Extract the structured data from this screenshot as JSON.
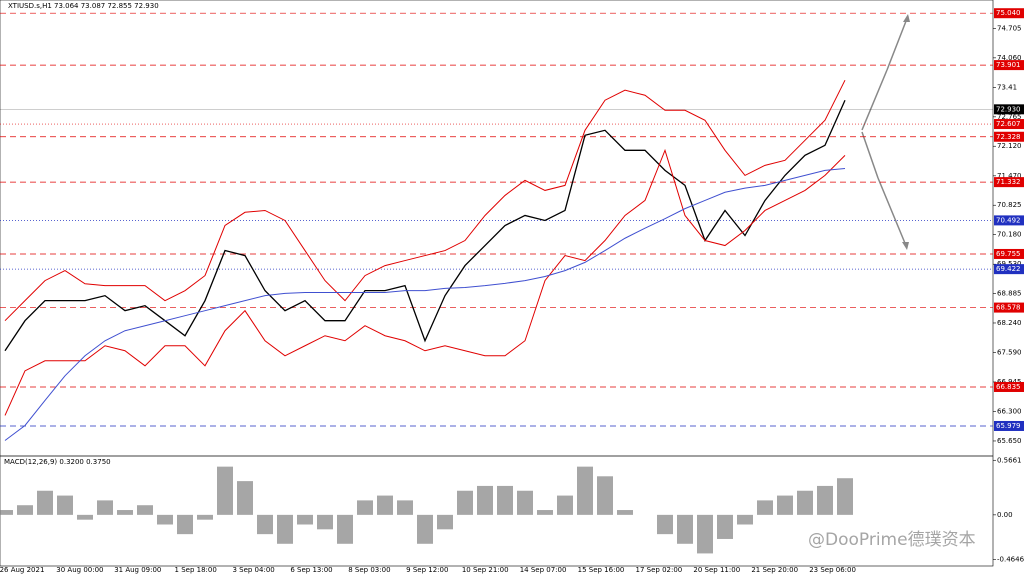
{
  "chart_data": [
    {
      "type": "line",
      "title": "XTIUSD.s,H1  73.064 73.087 72.855 72.930",
      "x_labels": [
        "26 Aug 2021",
        "30 Aug 00:00",
        "31 Aug 09:00",
        "1 Sep 18:00",
        "3 Sep 04:00",
        "6 Sep 13:00",
        "8 Sep 03:00",
        "9 Sep 12:00",
        "10 Sep 21:00",
        "14 Sep 07:00",
        "15 Sep 16:00",
        "17 Sep 02:00",
        "20 Sep 11:00",
        "21 Sep 20:00",
        "23 Sep 06:00"
      ],
      "ylim": [
        65.32,
        75.33
      ],
      "yticks": [
        74.705,
        {
          "value": 74.06,
          "label": "74.060"
        },
        73.41,
        72.765,
        {
          "value": 72.12,
          "label": "72.120"
        },
        {
          "value": 71.47,
          "label": "71.470"
        },
        70.825,
        {
          "value": 70.18,
          "label": "70.180"
        },
        {
          "value": 69.53,
          "label": "69.530"
        },
        68.885,
        {
          "value": 68.24,
          "label": "68.240"
        },
        {
          "value": 67.59,
          "label": "67.590"
        },
        66.945,
        {
          "value": 66.3,
          "label": "66.300"
        },
        {
          "value": 65.65,
          "label": "65.650"
        }
      ],
      "levels": [
        {
          "value": 75.04,
          "label": "75.040",
          "color": "#e00000",
          "dash": "dashed"
        },
        {
          "value": 73.901,
          "label": "73.901",
          "color": "#e00000",
          "dash": "dashed"
        },
        {
          "value": 72.93,
          "label": "72.930",
          "color": "#000000",
          "dash": "solid"
        },
        {
          "value": 72.607,
          "label": "72.607",
          "color": "#e00000",
          "dash": "dotted"
        },
        {
          "value": 72.328,
          "label": "72.328",
          "color": "#e00000",
          "dash": "dashed"
        },
        {
          "value": 71.332,
          "label": "71.332",
          "color": "#e00000",
          "dash": "dashed"
        },
        {
          "value": 70.492,
          "label": "70.492",
          "color": "#2030c0",
          "dash": "dotted"
        },
        {
          "value": 69.755,
          "label": "69.755",
          "color": "#e00000",
          "dash": "dashed"
        },
        {
          "value": 69.422,
          "label": "69.422",
          "color": "#2030c0",
          "dash": "dotted"
        },
        {
          "value": 68.578,
          "label": "68.578",
          "color": "#e00000",
          "dash": "dashed"
        },
        {
          "value": 66.835,
          "label": "66.835",
          "color": "#e00000",
          "dash": "dashed"
        },
        {
          "value": 65.979,
          "label": "65.979",
          "color": "#2030c0",
          "dash": "dashed"
        }
      ],
      "series": [
        {
          "color": "#000000",
          "values": [
            67.63,
            68.29,
            68.73,
            68.73,
            68.73,
            68.84,
            68.51,
            68.62,
            68.29,
            67.96,
            68.73,
            69.83,
            69.72,
            68.95,
            68.51,
            68.73,
            68.29,
            68.29,
            68.95,
            68.95,
            69.06,
            67.85,
            68.84,
            69.5,
            69.94,
            70.38,
            70.6,
            70.49,
            70.71,
            72.36,
            72.47,
            72.03,
            72.03,
            71.59,
            71.26,
            70.05,
            70.71,
            70.16,
            70.93,
            71.48,
            71.92,
            72.14,
            73.13
          ]
        },
        {
          "color": "#e00000",
          "values": [
            68.29,
            68.73,
            69.17,
            69.39,
            69.1,
            69.06,
            69.06,
            69.06,
            68.73,
            68.95,
            69.28,
            70.38,
            70.67,
            70.71,
            70.49,
            69.83,
            69.17,
            68.73,
            69.28,
            69.5,
            69.61,
            69.72,
            69.83,
            70.05,
            70.6,
            71.04,
            71.37,
            71.15,
            71.26,
            72.47,
            73.13,
            73.35,
            73.24,
            72.91,
            72.91,
            72.69,
            72.03,
            71.48,
            71.7,
            71.81,
            72.25,
            72.69,
            73.57
          ]
        },
        {
          "color": "#e00000",
          "values": [
            66.21,
            67.19,
            67.41,
            67.41,
            67.41,
            67.74,
            67.63,
            67.3,
            67.74,
            67.74,
            67.3,
            68.07,
            68.51,
            67.85,
            67.52,
            67.74,
            67.96,
            67.85,
            68.18,
            67.96,
            67.85,
            67.63,
            67.74,
            67.63,
            67.52,
            67.52,
            67.85,
            69.17,
            69.72,
            69.61,
            70.05,
            70.6,
            70.93,
            72.03,
            70.6,
            70.05,
            69.94,
            70.27,
            70.71,
            70.93,
            71.15,
            71.48,
            71.92
          ]
        },
        {
          "color": "#4050d0",
          "values": [
            65.66,
            65.99,
            66.54,
            67.08,
            67.52,
            67.85,
            68.07,
            68.18,
            68.29,
            68.4,
            68.51,
            68.62,
            68.73,
            68.84,
            68.89,
            68.91,
            68.91,
            68.91,
            68.91,
            68.91,
            68.95,
            68.95,
            69.0,
            69.02,
            69.06,
            69.11,
            69.17,
            69.26,
            69.39,
            69.57,
            69.83,
            70.1,
            70.32,
            70.53,
            70.75,
            70.93,
            71.11,
            71.2,
            71.26,
            71.37,
            71.48,
            71.59,
            71.63
          ]
        }
      ]
    },
    {
      "type": "bar",
      "title": "MACD(12,26,9) 0.3200 0.3750",
      "ylim": [
        -0.52,
        0.6
      ],
      "yticks": [
        0.5661,
        {
          "value": 0,
          "label": "0.00"
        },
        -0.4646
      ],
      "color": "#808080",
      "values": [
        0.05,
        0.1,
        0.25,
        0.2,
        -0.05,
        0.15,
        0.05,
        0.1,
        -0.1,
        -0.2,
        -0.05,
        0.5,
        0.35,
        -0.2,
        -0.3,
        -0.1,
        -0.15,
        -0.3,
        0.15,
        0.2,
        0.15,
        -0.3,
        -0.15,
        0.25,
        0.3,
        0.3,
        0.25,
        0.05,
        0.2,
        0.5,
        0.4,
        0.05,
        0,
        -0.2,
        -0.3,
        -0.4,
        -0.25,
        -0.1,
        0.15,
        0.2,
        0.25,
        0.3,
        0.38
      ]
    }
  ],
  "watermark": "@DooPrime德璞资本"
}
